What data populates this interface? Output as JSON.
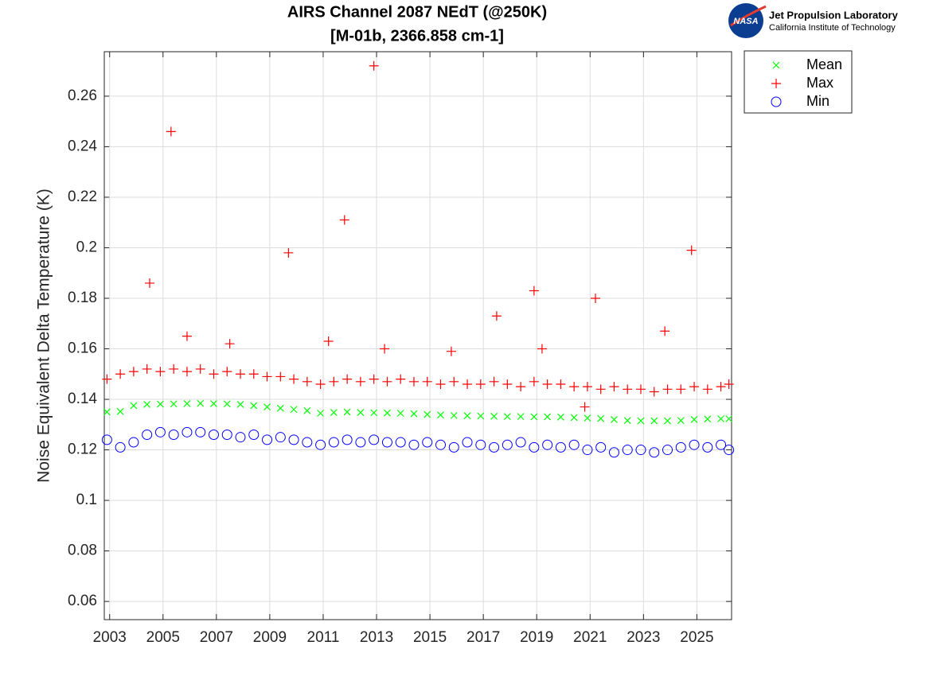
{
  "logo": {
    "badge": "NASA",
    "name": "Jet Propulsion Laboratory",
    "subtitle": "California Institute of Technology"
  },
  "chart_data": {
    "type": "scatter",
    "title": [
      "AIRS Channel 2087 NEdT (@250K)",
      "[M-01b, 2366.858 cm-1]"
    ],
    "y_label": "Noise Equivalent Delta Temperature (K)",
    "xlim": [
      2002.8,
      2026.3
    ],
    "xticks": [
      2003,
      2005,
      2007,
      2009,
      2011,
      2013,
      2015,
      2017,
      2019,
      2021,
      2023,
      2025
    ],
    "ylim": [
      0.0528,
      0.2776
    ],
    "yticks": [
      0.06,
      0.08,
      0.1,
      0.12,
      0.14,
      0.16,
      0.18,
      0.2,
      0.22,
      0.24,
      0.26
    ],
    "grid": true,
    "legend": "outside-top-right",
    "series": [
      {
        "name": "Mean",
        "color": "#00ff00",
        "marker": "x",
        "x": [
          2002.9,
          2003.4,
          2003.9,
          2004.4,
          2004.9,
          2005.4,
          2005.9,
          2006.4,
          2006.9,
          2007.4,
          2007.9,
          2008.4,
          2008.9,
          2009.4,
          2009.9,
          2010.4,
          2010.9,
          2011.4,
          2011.9,
          2012.4,
          2012.9,
          2013.4,
          2013.9,
          2014.4,
          2014.9,
          2015.4,
          2015.9,
          2016.4,
          2016.9,
          2017.4,
          2017.9,
          2018.4,
          2018.9,
          2019.4,
          2019.9,
          2020.4,
          2020.9,
          2021.4,
          2021.9,
          2022.4,
          2022.9,
          2023.4,
          2023.9,
          2024.4,
          2024.9,
          2025.4,
          2025.9,
          2026.2
        ],
        "values": [
          0.135,
          0.1352,
          0.1375,
          0.138,
          0.1381,
          0.1382,
          0.1383,
          0.1384,
          0.1383,
          0.1382,
          0.138,
          0.1375,
          0.137,
          0.1365,
          0.136,
          0.1355,
          0.1345,
          0.1348,
          0.135,
          0.1348,
          0.1347,
          0.1346,
          0.1345,
          0.1343,
          0.134,
          0.1338,
          0.1336,
          0.1335,
          0.1334,
          0.1333,
          0.1332,
          0.1332,
          0.1331,
          0.1331,
          0.133,
          0.1328,
          0.1326,
          0.1324,
          0.132,
          0.1316,
          0.1315,
          0.1315,
          0.1315,
          0.1316,
          0.132,
          0.1322,
          0.1323,
          0.1323
        ]
      },
      {
        "name": "Max",
        "color": "#ff0000",
        "marker": "+",
        "x": [
          2002.9,
          2003.4,
          2003.9,
          2004.4,
          2004.9,
          2005.4,
          2005.9,
          2006.4,
          2006.9,
          2007.4,
          2007.9,
          2008.4,
          2008.9,
          2009.4,
          2009.9,
          2010.4,
          2010.9,
          2011.4,
          2011.9,
          2012.4,
          2012.9,
          2013.4,
          2013.9,
          2014.4,
          2014.9,
          2015.4,
          2015.9,
          2016.4,
          2016.9,
          2017.4,
          2017.9,
          2018.4,
          2018.9,
          2019.4,
          2019.9,
          2020.4,
          2020.9,
          2021.4,
          2021.9,
          2022.4,
          2022.9,
          2023.4,
          2023.9,
          2024.4,
          2024.9,
          2025.4,
          2025.9,
          2026.2,
          2004.5,
          2005.3,
          2005.9,
          2007.5,
          2009.7,
          2011.2,
          2011.8,
          2012.9,
          2013.3,
          2015.8,
          2017.5,
          2018.9,
          2019.2,
          2020.8,
          2021.2,
          2023.8,
          2024.8
        ],
        "values": [
          0.148,
          0.15,
          0.151,
          0.152,
          0.151,
          0.152,
          0.151,
          0.152,
          0.15,
          0.151,
          0.15,
          0.15,
          0.149,
          0.149,
          0.148,
          0.147,
          0.146,
          0.147,
          0.148,
          0.147,
          0.148,
          0.147,
          0.148,
          0.147,
          0.147,
          0.146,
          0.147,
          0.146,
          0.146,
          0.147,
          0.146,
          0.145,
          0.147,
          0.146,
          0.146,
          0.145,
          0.145,
          0.144,
          0.145,
          0.144,
          0.144,
          0.143,
          0.144,
          0.144,
          0.145,
          0.144,
          0.145,
          0.146,
          0.186,
          0.246,
          0.165,
          0.162,
          0.198,
          0.163,
          0.211,
          0.272,
          0.16,
          0.159,
          0.173,
          0.183,
          0.16,
          0.137,
          0.18,
          0.167,
          0.199
        ]
      },
      {
        "name": "Min",
        "color": "#0000ff",
        "marker": "o",
        "x": [
          2002.9,
          2003.4,
          2003.9,
          2004.4,
          2004.9,
          2005.4,
          2005.9,
          2006.4,
          2006.9,
          2007.4,
          2007.9,
          2008.4,
          2008.9,
          2009.4,
          2009.9,
          2010.4,
          2010.9,
          2011.4,
          2011.9,
          2012.4,
          2012.9,
          2013.4,
          2013.9,
          2014.4,
          2014.9,
          2015.4,
          2015.9,
          2016.4,
          2016.9,
          2017.4,
          2017.9,
          2018.4,
          2018.9,
          2019.4,
          2019.9,
          2020.4,
          2020.9,
          2021.4,
          2021.9,
          2022.4,
          2022.9,
          2023.4,
          2023.9,
          2024.4,
          2024.9,
          2025.4,
          2025.9,
          2026.2
        ],
        "values": [
          0.124,
          0.121,
          0.123,
          0.126,
          0.127,
          0.126,
          0.127,
          0.127,
          0.126,
          0.126,
          0.125,
          0.126,
          0.124,
          0.125,
          0.124,
          0.123,
          0.122,
          0.123,
          0.124,
          0.123,
          0.124,
          0.123,
          0.123,
          0.122,
          0.123,
          0.122,
          0.121,
          0.123,
          0.122,
          0.121,
          0.122,
          0.123,
          0.121,
          0.122,
          0.121,
          0.122,
          0.12,
          0.121,
          0.119,
          0.12,
          0.12,
          0.119,
          0.12,
          0.121,
          0.122,
          0.121,
          0.122,
          0.12
        ]
      }
    ]
  }
}
